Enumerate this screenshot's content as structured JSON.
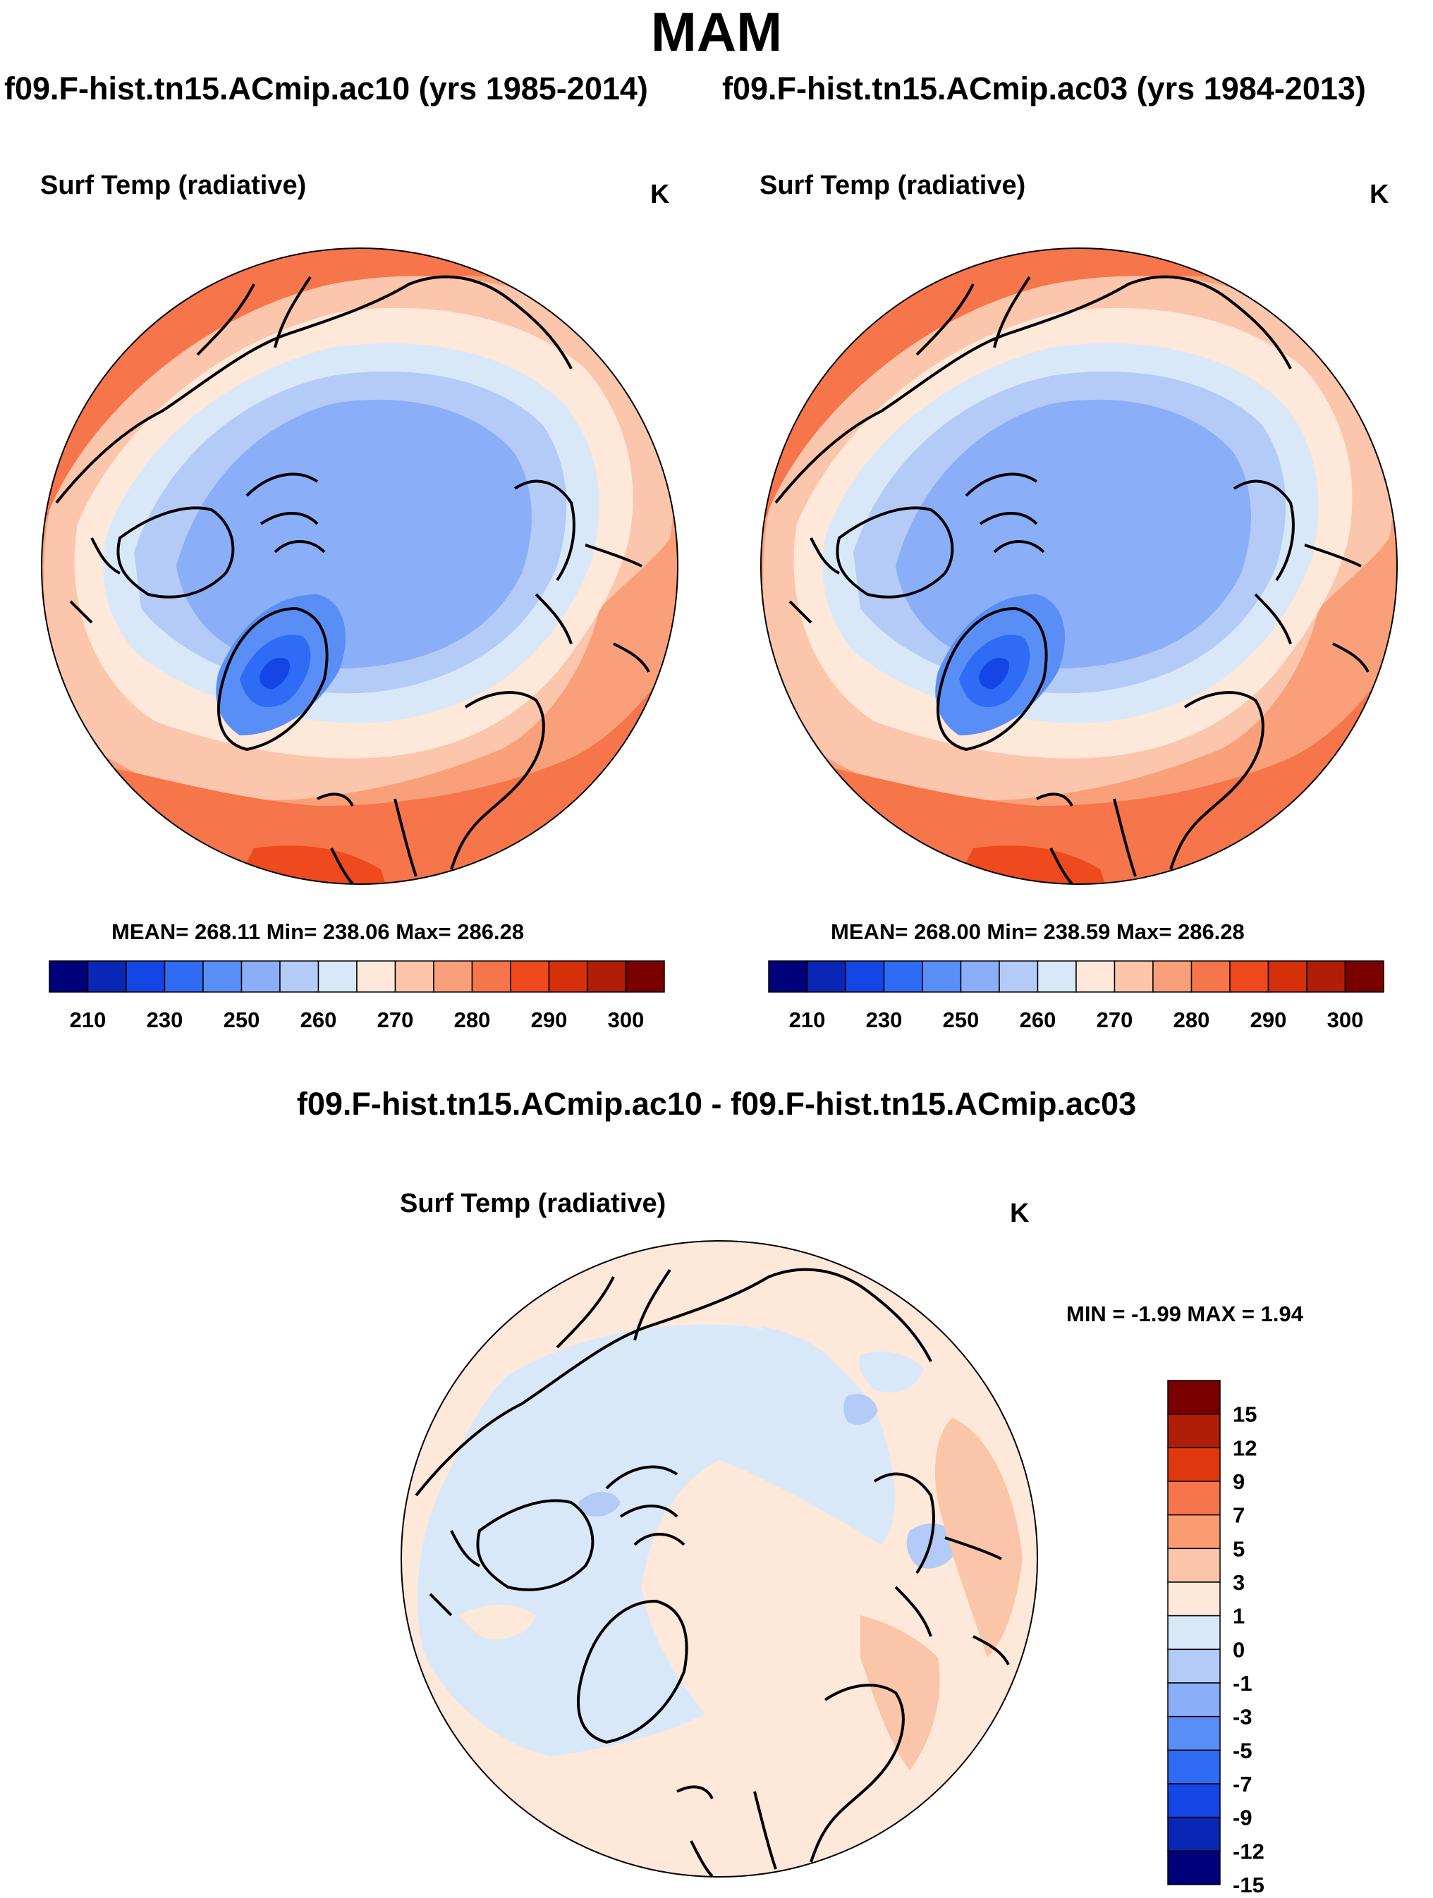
{
  "figure": {
    "title": "MAM",
    "case_a": "f09.F-hist.tn15.ACmip.ac10 (yrs 1985-2014)",
    "case_b": "f09.F-hist.tn15.ACmip.ac03 (yrs 1984-2013)",
    "difference_title": "f09.F-hist.tn15.ACmip.ac10 - f09.F-hist.tn15.ACmip.ac03"
  },
  "panels": [
    {
      "variable": "Surf Temp (radiative)",
      "units": "K",
      "stats": "MEAN= 268.11  Min= 238.06  Max= 286.28"
    },
    {
      "variable": "Surf Temp (radiative)",
      "units": "K",
      "stats": "MEAN= 268.00  Min= 238.59  Max= 286.28"
    },
    {
      "variable": "Surf Temp (radiative)",
      "units": "K",
      "stats": "MIN =  -1.99 MAX =   1.94"
    }
  ],
  "colorbar_abs": {
    "colors": [
      "#00007a",
      "#0a26b5",
      "#1446e6",
      "#2f6cf5",
      "#5a8ef7",
      "#8aaef7",
      "#b4cbf7",
      "#d9e8f9",
      "#fde8d9",
      "#fbc6ab",
      "#f9a07a",
      "#f6754b",
      "#ee4a1e",
      "#d6300b",
      "#b01e08",
      "#7a0000"
    ],
    "labels": [
      "210",
      "230",
      "250",
      "260",
      "270",
      "280",
      "290",
      "300"
    ]
  },
  "colorbar_diff": {
    "colors": [
      "#7a0000",
      "#b01e08",
      "#e0380e",
      "#f6754b",
      "#f99c72",
      "#fac5a8",
      "#fde8d9",
      "#d9e8f9",
      "#b4cbf7",
      "#8aaef7",
      "#5a8ef7",
      "#2f6cf5",
      "#1446e6",
      "#0a26b5",
      "#00007a"
    ],
    "labels": [
      "15",
      "12",
      "9",
      "7",
      "5",
      "3",
      "1",
      "0",
      "-1",
      "-3",
      "-5",
      "-7",
      "-9",
      "-12",
      "-15"
    ]
  }
}
